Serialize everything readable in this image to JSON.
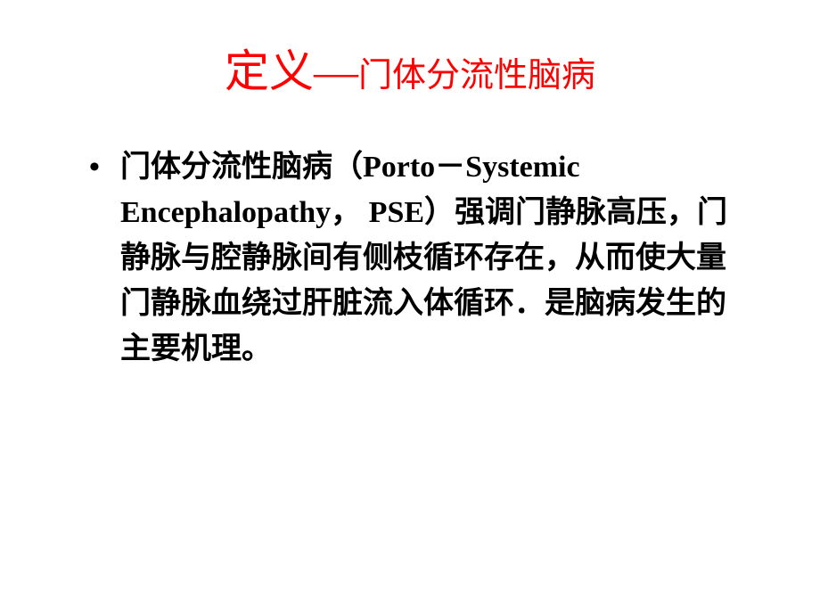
{
  "slide": {
    "title": {
      "main": "定义—",
      "sub": "门体分流性脑病",
      "color": "#ff0000",
      "main_fontsize": 50,
      "sub_fontsize": 38
    },
    "content": {
      "bullet_text": "门体分流性脑病（Porto－Systemic Encephalopathy， PSE）强调门静脉高压，门静脉与腔静脉间有侧枝循环存在，从而使大量门静脉血绕过肝脏流入体循环．是脑病发生的主要机理。",
      "fontsize": 34,
      "color": "#000000",
      "font_weight": "bold",
      "line_height": 1.5
    },
    "background_color": "#ffffff"
  }
}
